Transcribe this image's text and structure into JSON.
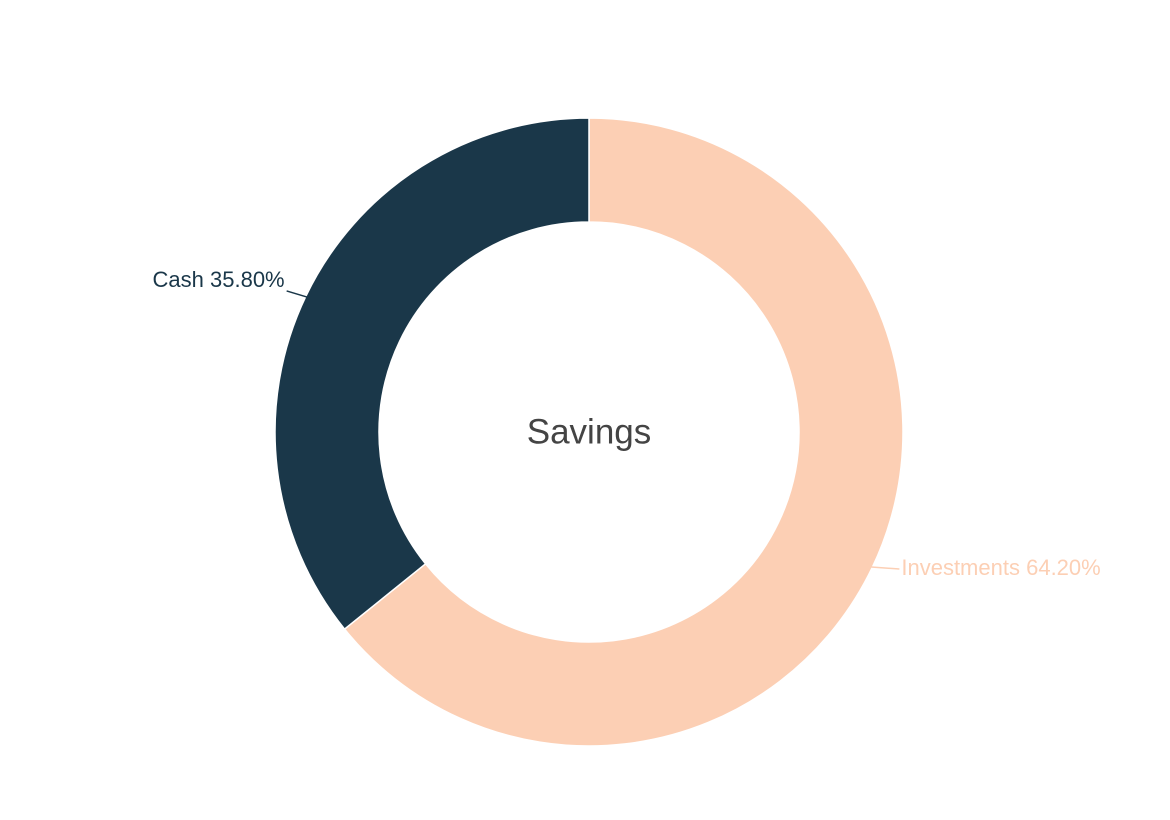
{
  "chart_data": {
    "type": "donut",
    "title": "Savings",
    "categories": [
      "Investments",
      "Cash"
    ],
    "values": [
      64.2,
      35.8
    ],
    "value_labels": [
      "64.20%",
      "35.80%"
    ],
    "colors": [
      "#fccfb4",
      "#1a3749"
    ]
  }
}
